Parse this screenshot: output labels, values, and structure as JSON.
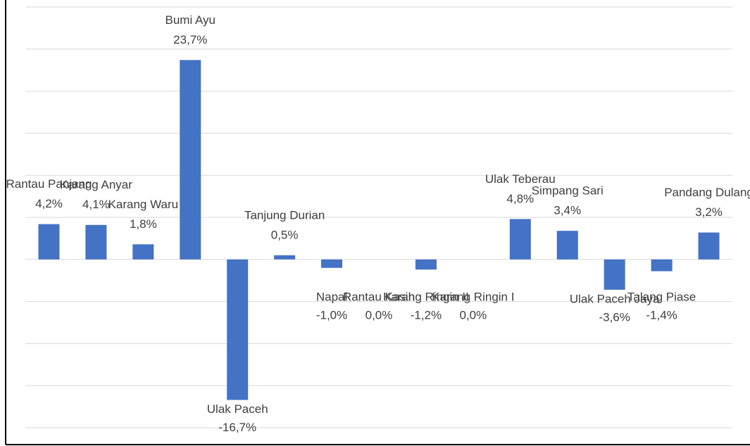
{
  "chart_data": {
    "type": "bar",
    "categories": [
      "Rantau Panjang",
      "Karang Anyar",
      "Karang Waru",
      "Bumi Ayu",
      "Ulak Paceh",
      "Tanjung Durian",
      "Napal",
      "Rantau Kasih",
      "Karang Ringin II",
      "Karang Ringin I",
      "Ulak Teberau",
      "Simpang Sari",
      "Ulak Paceh Jaya",
      "Talang Piase",
      "Pandang Dulang"
    ],
    "values": [
      4.2,
      4.1,
      1.8,
      23.7,
      -16.7,
      0.5,
      -1.0,
      0.0,
      -1.2,
      0.0,
      4.8,
      3.4,
      -3.6,
      -1.4,
      3.2
    ],
    "value_labels": [
      "4,2%",
      "4,1%",
      "1,8%",
      "23,7%",
      "-16,7%",
      "0,5%",
      "-1,0%",
      "0,0%",
      "-1,2%",
      "0,0%",
      "4,8%",
      "3,4%",
      "-3,6%",
      "-1,4%",
      "3,2%"
    ],
    "color": "#4472c4",
    "ylim": [
      -20,
      30
    ],
    "yticks": [
      -20,
      -15,
      -10,
      -5,
      0,
      5,
      10,
      15,
      20,
      25,
      30
    ],
    "grid": true
  }
}
